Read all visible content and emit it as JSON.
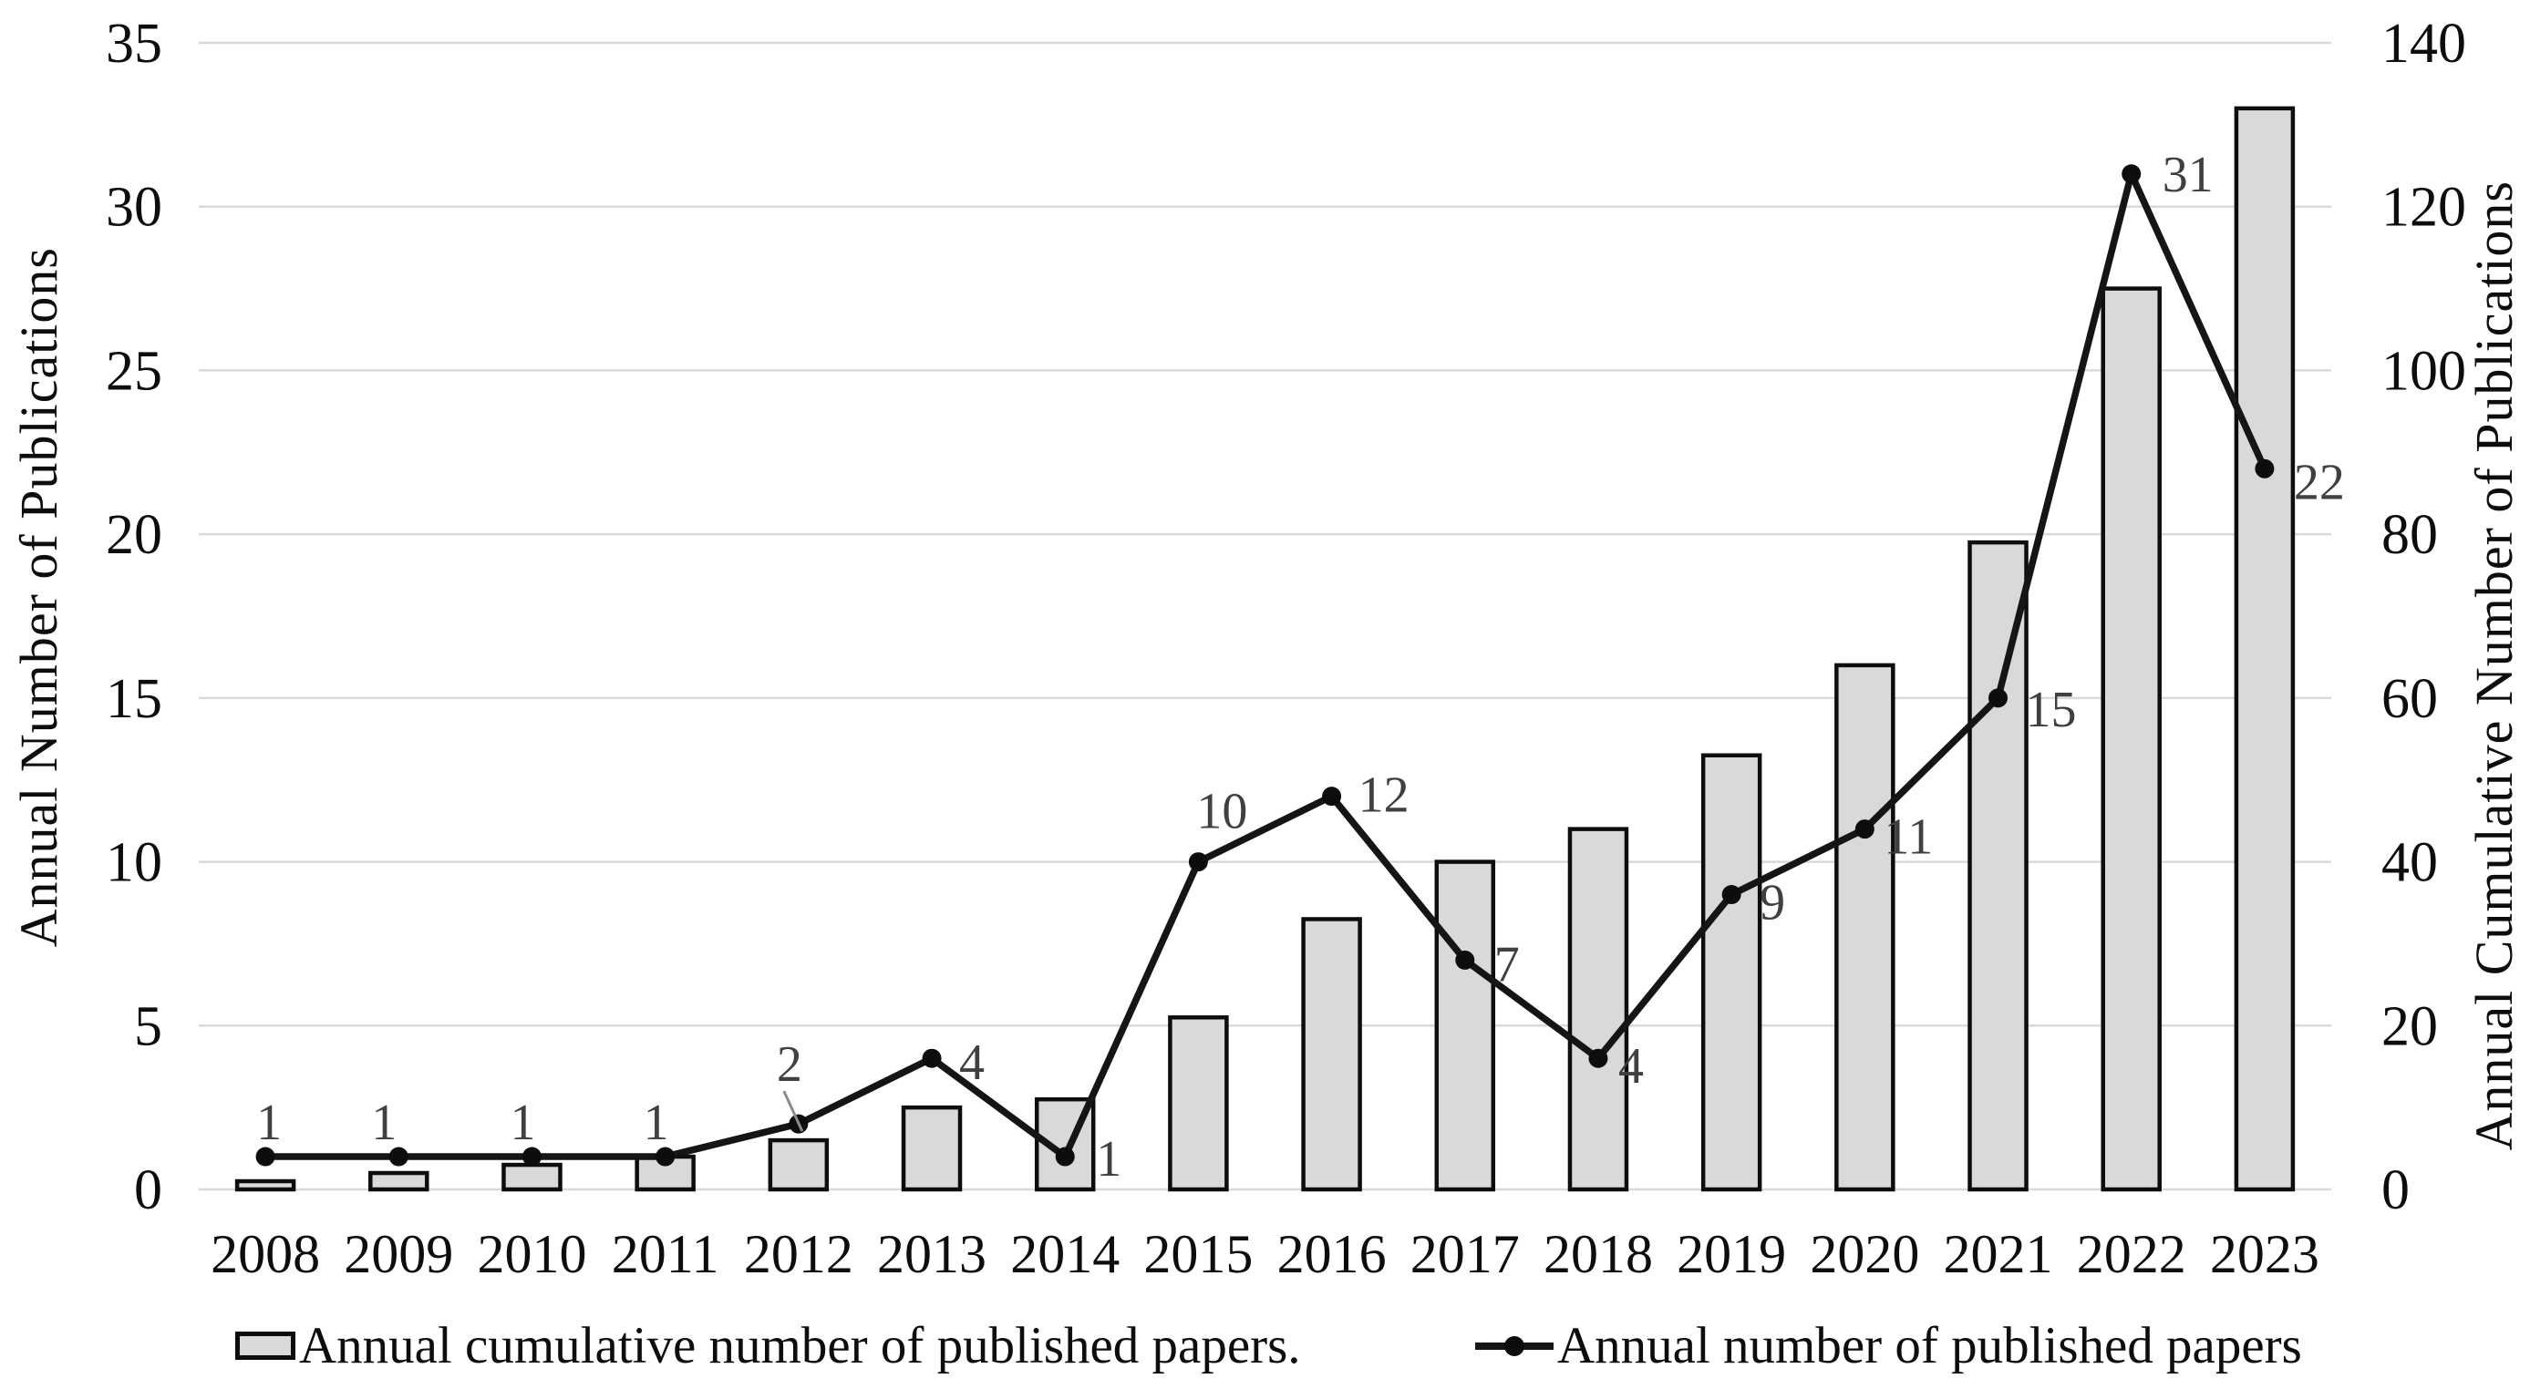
{
  "chart_data": {
    "type": "combo-bar-line",
    "title": "",
    "categories": [
      "2008",
      "2009",
      "2010",
      "2011",
      "2012",
      "2013",
      "2014",
      "2015",
      "2016",
      "2017",
      "2018",
      "2019",
      "2020",
      "2021",
      "2022",
      "2023"
    ],
    "series": [
      {
        "name": "Annual cumulative number of published papers.",
        "type": "bar",
        "axis": "right",
        "values": [
          1,
          2,
          3,
          4,
          6,
          10,
          11,
          21,
          33,
          40,
          44,
          53,
          64,
          79,
          110,
          132
        ]
      },
      {
        "name": "Annual number of published papers",
        "type": "line",
        "axis": "left",
        "values": [
          1,
          1,
          1,
          1,
          2,
          4,
          1,
          10,
          12,
          7,
          4,
          9,
          11,
          15,
          31,
          22
        ],
        "point_labels": [
          "1",
          "1",
          "1",
          "1",
          "2",
          "4",
          "1",
          "10",
          "12",
          "7",
          "4",
          "9",
          "11",
          "15",
          "31",
          "22"
        ],
        "label_offsets": [
          [
            4,
            -38
          ],
          [
            -16,
            -38
          ],
          [
            -10,
            -38
          ],
          [
            -10,
            -38
          ],
          [
            -10,
            -66
          ],
          [
            44,
            4
          ],
          [
            48,
            2
          ],
          [
            26,
            -56
          ],
          [
            57,
            -2
          ],
          [
            46,
            4
          ],
          [
            36,
            8
          ],
          [
            45,
            8
          ],
          [
            48,
            8
          ],
          [
            58,
            12
          ],
          [
            62,
            0
          ],
          [
            60,
            14
          ]
        ],
        "leader_line_index": 4
      }
    ],
    "left_axis": {
      "title": "Annual Number of Publications",
      "min": 0,
      "max": 35,
      "ticks": [
        0,
        5,
        10,
        15,
        20,
        25,
        30,
        35
      ]
    },
    "right_axis": {
      "title": "Annual Cumulative Number of Publications",
      "min": 0,
      "max": 140,
      "ticks": [
        0,
        20,
        40,
        60,
        80,
        100,
        120,
        140
      ]
    },
    "x_axis": {
      "tick_labels": [
        "2008",
        "2009",
        "2010",
        "2011",
        "2012",
        "2013",
        "2014",
        "2015",
        "2016",
        "2017",
        "2018",
        "2019",
        "2020",
        "2021",
        "2022",
        "2023"
      ]
    },
    "legend": [
      {
        "label": "Annual cumulative number of published papers.",
        "marker": "bar-swatch"
      },
      {
        "label": "Annual number of published papers",
        "marker": "line-dot"
      }
    ],
    "legend_position": "bottom",
    "grid": true,
    "colors": {
      "bar_fill": "#d9d9d9",
      "bar_border": "#0d0d0d",
      "line": "#151515",
      "marker": "#0d0d0d",
      "gridline": "#d9d9d9",
      "data_label": "#404040",
      "axis_text": "#0d0d0d",
      "leader": "#8c8c8c",
      "background": "#ffffff"
    }
  }
}
